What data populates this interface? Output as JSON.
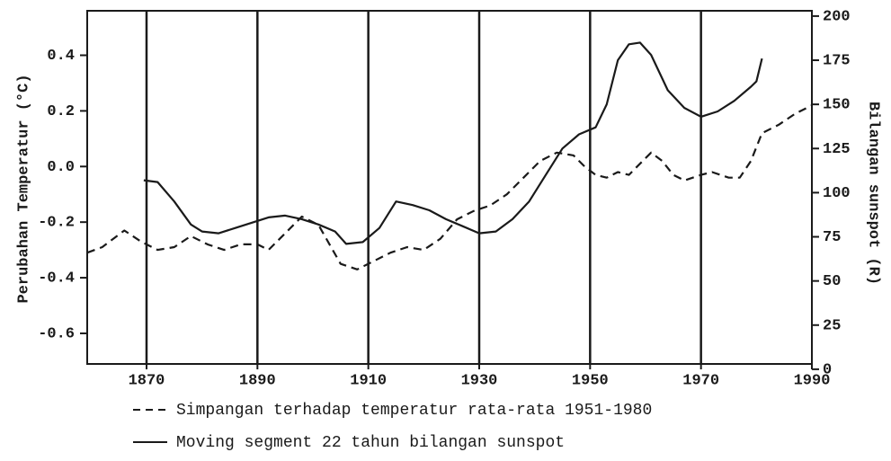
{
  "chart_data": {
    "type": "line",
    "xlabel": null,
    "ylabel": "Perubahan Temperatur (°C)",
    "y2label": "Bilangan sunspot (R)",
    "xlim": [
      1859.3,
      1990
    ],
    "xticks": [
      1870,
      1890,
      1910,
      1930,
      1950,
      1970,
      1990
    ],
    "ylim": [
      -0.71,
      0.56
    ],
    "yticks": [
      0.4,
      0.2,
      {
        "value": 0,
        "label": "0.0"
      },
      -0.2,
      -0.4,
      -0.6
    ],
    "y2lim": [
      3,
      203
    ],
    "y2ticks": [
      0,
      25,
      50,
      75,
      100,
      125,
      150,
      175,
      200
    ],
    "grid": "x",
    "legend": "bottom",
    "series": [
      {
        "name": "Simpangan terhadap temperatur rata-rata 1951-1980",
        "color": "#1a1a1a",
        "dash": "dashed",
        "axis": "y",
        "x": [
          1859.3,
          1862,
          1866,
          1869,
          1872,
          1875,
          1878,
          1881,
          1884,
          1887,
          1890,
          1892,
          1895,
          1898,
          1901,
          1903,
          1905,
          1908,
          1911,
          1914,
          1917,
          1920,
          1923,
          1926,
          1929,
          1932,
          1935,
          1938,
          1941,
          1944,
          1947,
          1949,
          1951,
          1953,
          1955,
          1957,
          1959,
          1961,
          1963,
          1965,
          1967,
          1970,
          1972,
          1975,
          1977,
          1979,
          1981,
          1984,
          1987,
          1990
        ],
        "values": [
          -0.31,
          -0.29,
          -0.23,
          -0.27,
          -0.3,
          -0.29,
          -0.25,
          -0.28,
          -0.3,
          -0.28,
          -0.28,
          -0.3,
          -0.24,
          -0.18,
          -0.21,
          -0.28,
          -0.35,
          -0.37,
          -0.34,
          -0.31,
          -0.29,
          -0.3,
          -0.26,
          -0.19,
          -0.16,
          -0.14,
          -0.1,
          -0.04,
          0.02,
          0.05,
          0.04,
          0.0,
          -0.03,
          -0.04,
          -0.02,
          -0.03,
          0.01,
          0.05,
          0.02,
          -0.03,
          -0.05,
          -0.03,
          -0.02,
          -0.04,
          -0.04,
          0.02,
          0.12,
          0.15,
          0.19,
          0.22
        ]
      },
      {
        "name": "Moving segment 22 tahun bilangan sunspot",
        "color": "#1a1a1a",
        "dash": "solid",
        "axis": "y2",
        "x": [
          1869.5,
          1872,
          1875,
          1878,
          1880,
          1883,
          1886,
          1889,
          1892,
          1895,
          1898,
          1901,
          1904,
          1906,
          1909,
          1912,
          1915,
          1918,
          1921,
          1924,
          1927,
          1930,
          1933,
          1936,
          1939,
          1942,
          1945,
          1948,
          1951,
          1953,
          1955,
          1957,
          1959,
          1961,
          1964,
          1967,
          1970,
          1973,
          1976,
          1979,
          1980,
          1981
        ],
        "values": [
          107,
          106,
          95,
          82,
          78,
          77,
          80,
          83,
          86,
          87,
          85,
          82,
          78,
          71,
          72,
          80,
          95,
          93,
          90,
          85,
          81,
          77,
          78,
          85,
          95,
          110,
          125,
          133,
          137,
          150,
          175,
          184,
          185,
          178,
          158,
          148,
          143,
          146,
          152,
          160,
          163,
          176
        ]
      }
    ]
  }
}
